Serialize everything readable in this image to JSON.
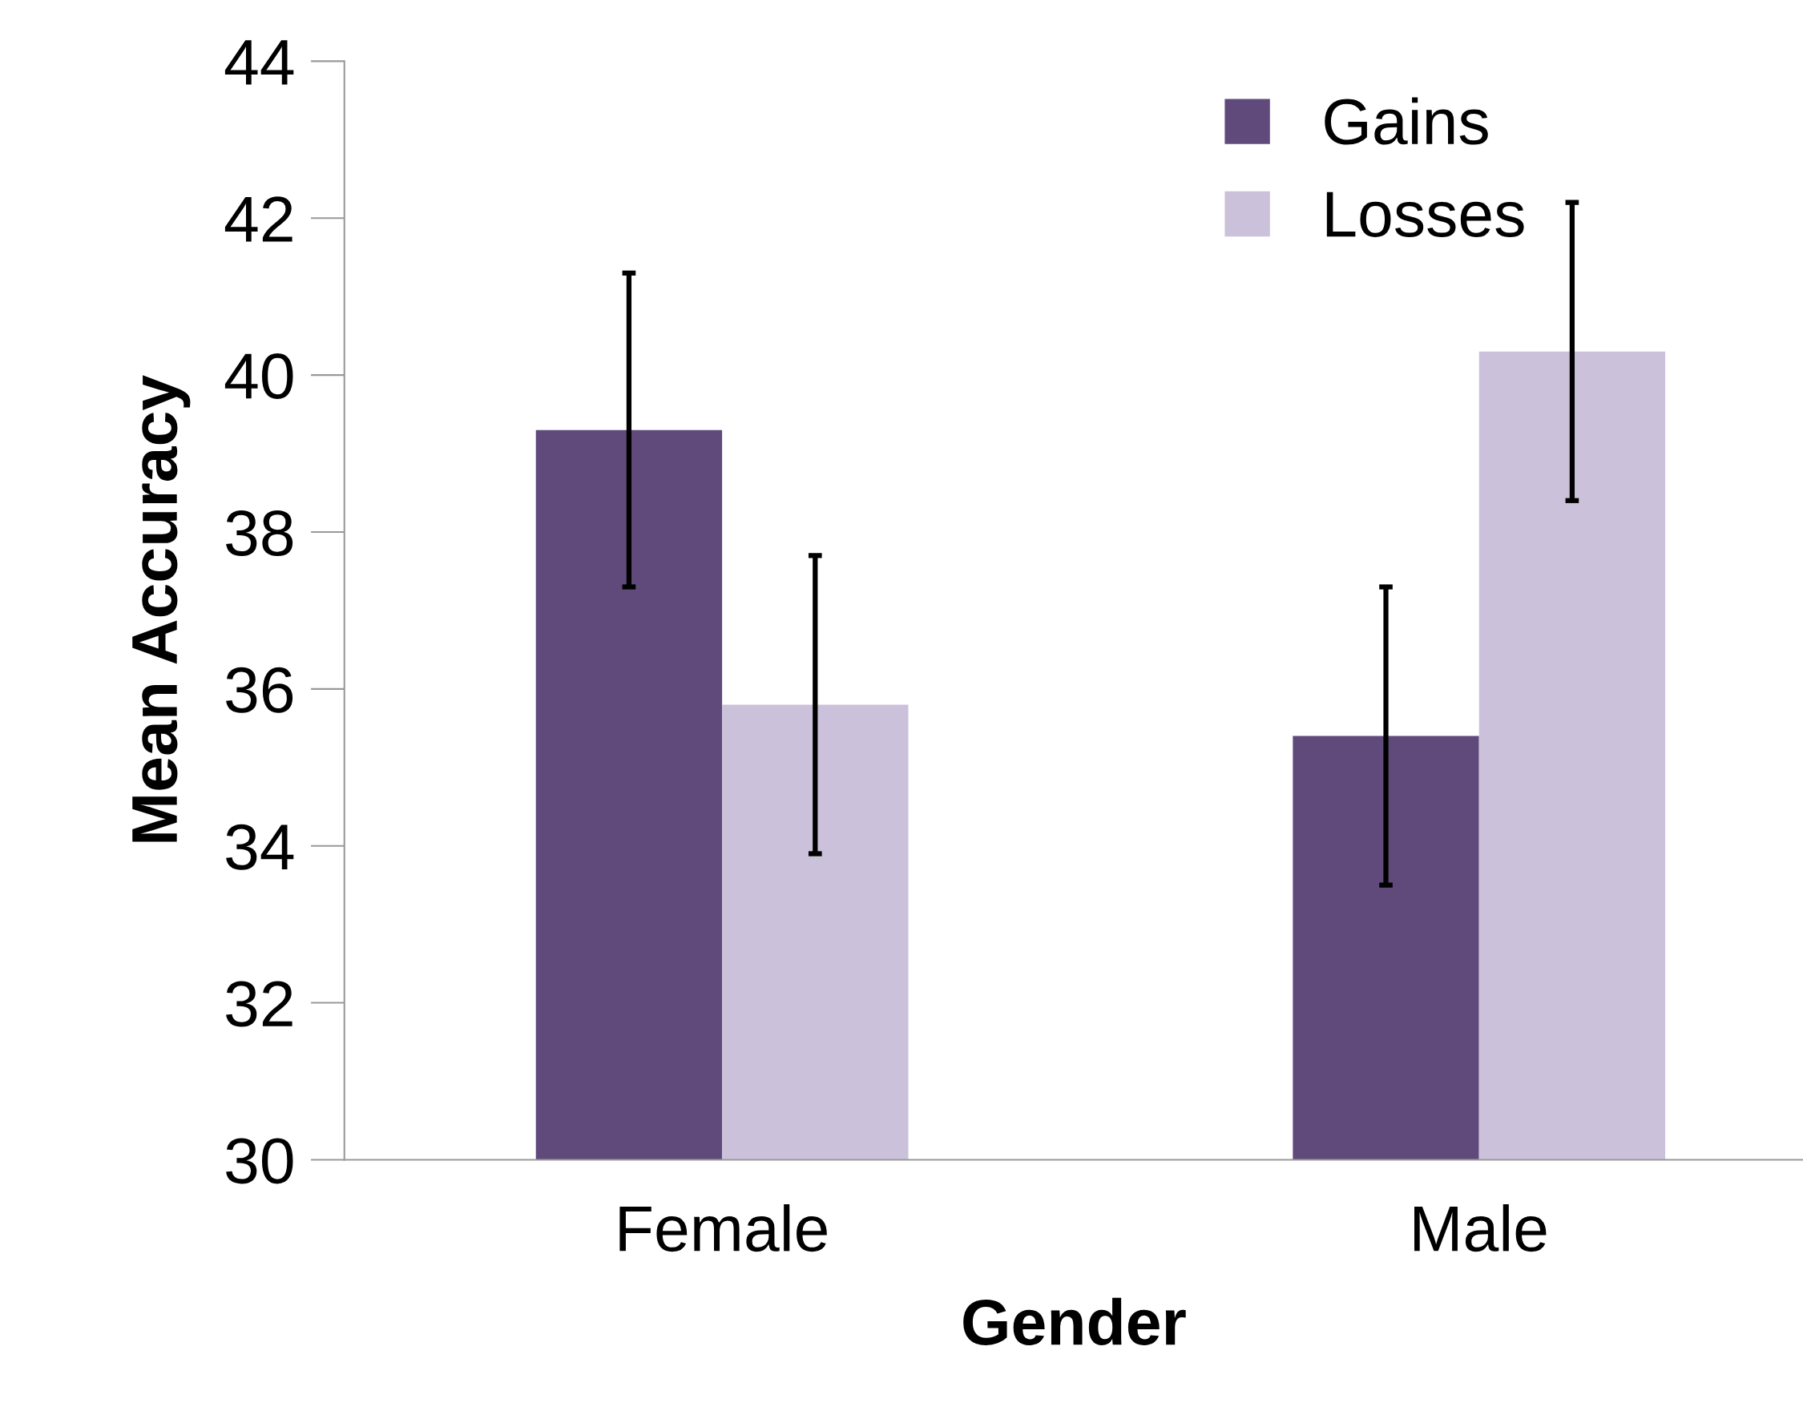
{
  "chart_data": {
    "type": "bar",
    "xlabel": "Gender",
    "ylabel": "Mean Accuracy",
    "categories": [
      "Female",
      "Male"
    ],
    "series": [
      {
        "name": "Gains",
        "color": "#604a7b",
        "values": [
          39.3,
          35.4
        ],
        "errors": [
          2.0,
          1.9
        ]
      },
      {
        "name": "Losses",
        "color": "#ccc1da",
        "values": [
          35.8,
          40.3
        ],
        "errors": [
          1.9,
          1.9
        ]
      }
    ],
    "ylim": [
      30,
      44
    ],
    "yticks": [
      30,
      32,
      34,
      36,
      38,
      40,
      42,
      44
    ],
    "grid": false,
    "legend": "top right"
  }
}
